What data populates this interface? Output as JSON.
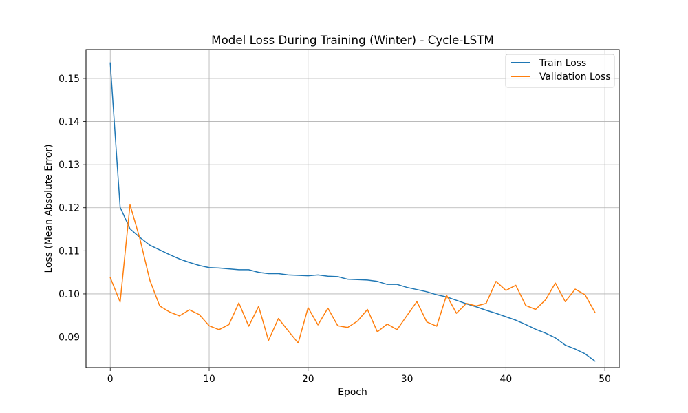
{
  "chart_data": {
    "type": "line",
    "title": "Model Loss During Training (Winter) - Cycle-LSTM",
    "xlabel": "Epoch",
    "ylabel": "Loss (Mean Absolute Error)",
    "xlim": [
      -2.45,
      51.45
    ],
    "ylim": [
      0.0829,
      0.1567
    ],
    "xticks": [
      0,
      10,
      20,
      30,
      40,
      50
    ],
    "yticks": [
      0.09,
      0.1,
      0.11,
      0.12,
      0.13,
      0.14,
      0.15
    ],
    "ytick_labels": [
      "0.09",
      "0.10",
      "0.11",
      "0.12",
      "0.13",
      "0.14",
      "0.15"
    ],
    "grid": true,
    "legend_position": "upper right",
    "x": [
      0,
      1,
      2,
      3,
      4,
      5,
      6,
      7,
      8,
      9,
      10,
      11,
      12,
      13,
      14,
      15,
      16,
      17,
      18,
      19,
      20,
      21,
      22,
      23,
      24,
      25,
      26,
      27,
      28,
      29,
      30,
      31,
      32,
      33,
      34,
      35,
      36,
      37,
      38,
      39,
      40,
      41,
      42,
      43,
      44,
      45,
      46,
      47,
      48,
      49
    ],
    "series": [
      {
        "name": "Train Loss",
        "color": "#1f77b4",
        "values": [
          0.1536,
          0.1201,
          0.1151,
          0.1131,
          0.1113,
          0.1102,
          0.1091,
          0.1081,
          0.1073,
          0.1066,
          0.1061,
          0.106,
          0.1058,
          0.1056,
          0.1056,
          0.105,
          0.1047,
          0.1047,
          0.1044,
          0.1043,
          0.1042,
          0.1044,
          0.1041,
          0.104,
          0.1034,
          0.1033,
          0.1032,
          0.1029,
          0.1022,
          0.1022,
          0.1015,
          0.101,
          0.1005,
          0.0998,
          0.0993,
          0.0985,
          0.0977,
          0.097,
          0.0962,
          0.0955,
          0.0947,
          0.0939,
          0.0929,
          0.0918,
          0.0909,
          0.0898,
          0.0881,
          0.0872,
          0.0861,
          0.0844
        ]
      },
      {
        "name": "Validation Loss",
        "color": "#ff7f0e",
        "values": [
          0.1038,
          0.0981,
          0.1207,
          0.1128,
          0.1032,
          0.0972,
          0.0958,
          0.0949,
          0.0963,
          0.0952,
          0.0926,
          0.0917,
          0.0929,
          0.0979,
          0.0925,
          0.0971,
          0.0892,
          0.0943,
          0.0914,
          0.0886,
          0.0968,
          0.0928,
          0.0967,
          0.0926,
          0.0922,
          0.0937,
          0.0964,
          0.0912,
          0.093,
          0.0917,
          0.095,
          0.0982,
          0.0935,
          0.0925,
          0.0997,
          0.0955,
          0.0978,
          0.0972,
          0.0978,
          0.1029,
          0.1008,
          0.102,
          0.0973,
          0.0964,
          0.0986,
          0.1025,
          0.0982,
          0.1011,
          0.0998,
          0.0957
        ]
      }
    ]
  }
}
